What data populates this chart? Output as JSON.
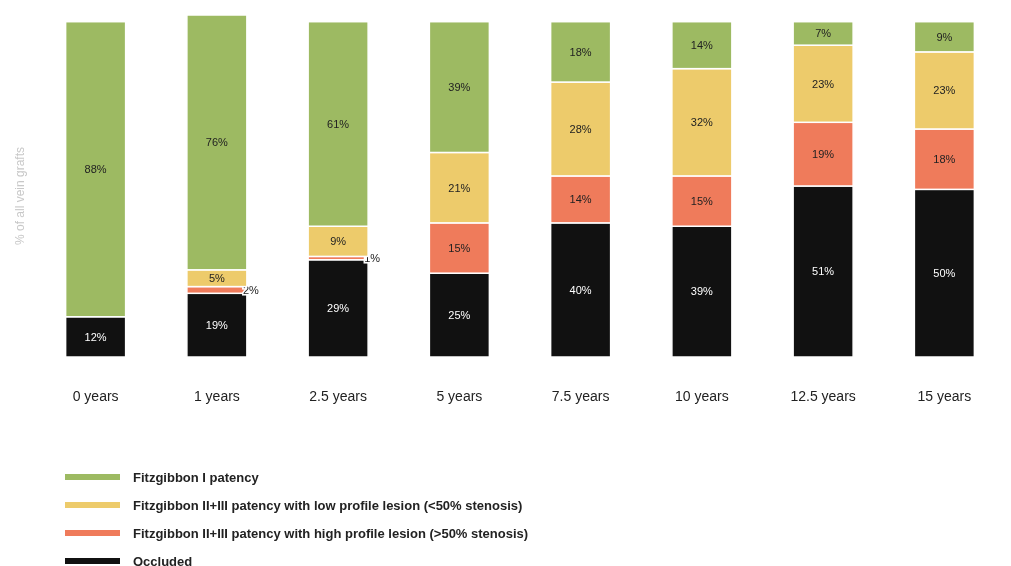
{
  "chart_data": {
    "type": "bar",
    "stacked": true,
    "ylabel": "% of all vein grafts",
    "categories": [
      "0 years",
      "1 years",
      "2.5 years",
      "5 years",
      "7.5 years",
      "10 years",
      "12.5 years",
      "15 years"
    ],
    "series": [
      {
        "name": "Occluded",
        "color": "#111111",
        "values": [
          12,
          19,
          29,
          25,
          40,
          39,
          51,
          50
        ],
        "value_labels": [
          "12%",
          "19%",
          "29%",
          "25%",
          "40%",
          "39%",
          "51%",
          "50%"
        ]
      },
      {
        "name": "Fitzgibbon II+III patency with high profile lesion (>50% stenosis)",
        "color": "#ef7b5b",
        "values": [
          null,
          2,
          1,
          15,
          14,
          15,
          19,
          18
        ],
        "value_labels": [
          null,
          "2%",
          "1%",
          "15%",
          "14%",
          "15%",
          "19%",
          "18%"
        ]
      },
      {
        "name": "Fitzgibbon II+III patency with low profile lesion (<50% stenosis)",
        "color": "#edcb6b",
        "values": [
          null,
          5,
          9,
          21,
          28,
          32,
          23,
          23
        ],
        "value_labels": [
          null,
          "5%",
          "9%",
          "21%",
          "28%",
          "32%",
          "23%",
          "23%"
        ]
      },
      {
        "name": "Fitzgibbon I patency",
        "color": "#9dba62",
        "values": [
          88,
          76,
          61,
          39,
          18,
          14,
          7,
          9
        ],
        "value_labels": [
          "88%",
          "76%",
          "61%",
          "39%",
          "18%",
          "14%",
          "7%",
          "9%"
        ]
      }
    ],
    "grid": false,
    "legend": "bottom"
  }
}
